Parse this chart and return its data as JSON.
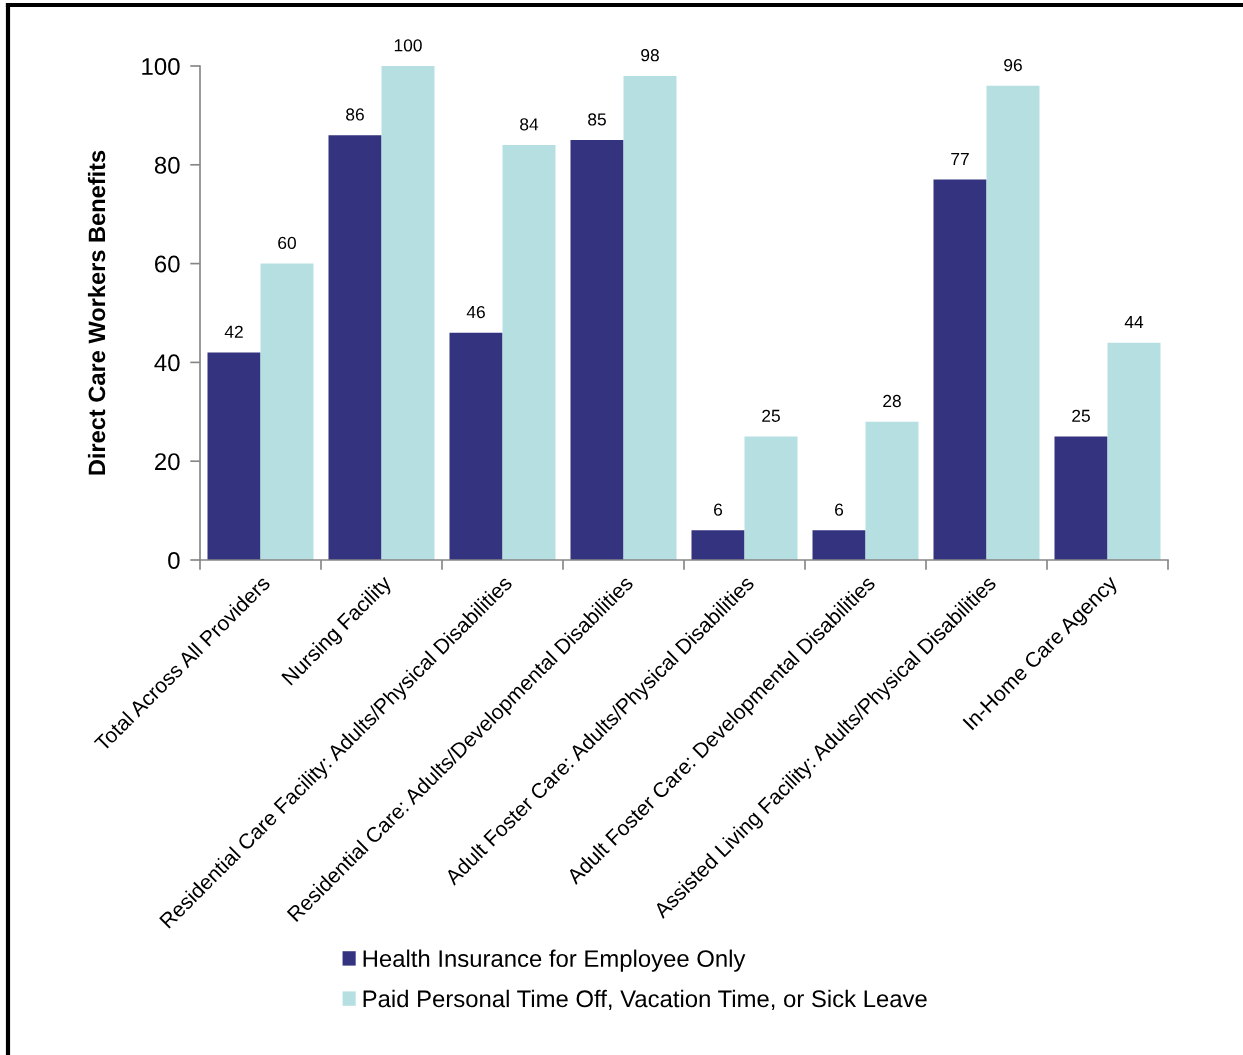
{
  "chart_data": {
    "type": "bar",
    "ylabel": "Direct Care Workers Benefits",
    "categories": [
      "Total Across All Providers",
      "Nursing Facility",
      "Residential Care Facility: Adults/Physical Disabilities",
      "Residential Care: Adults/Developmental Disabilities",
      "Adult Foster Care: Adults/Physical Disabilities",
      "Adult Foster Care: Developmental Disabilities",
      "Assisted Living Facility: Adults/Physical Disabilities",
      "In-Home Care Agency"
    ],
    "series": [
      {
        "name": "Health Insurance for Employee Only",
        "color": "#33337f",
        "values": [
          42,
          86,
          46,
          85,
          6,
          6,
          77,
          25
        ]
      },
      {
        "name": "Paid Personal Time Off, Vacation Time, or Sick Leave",
        "color": "#b6dfe2",
        "values": [
          60,
          100,
          84,
          98,
          25,
          28,
          96,
          44
        ]
      }
    ],
    "ylim": [
      0,
      100
    ],
    "yticks": [
      0,
      20,
      40,
      60,
      80,
      100
    ],
    "data_labels": true,
    "legend": "bottom"
  }
}
